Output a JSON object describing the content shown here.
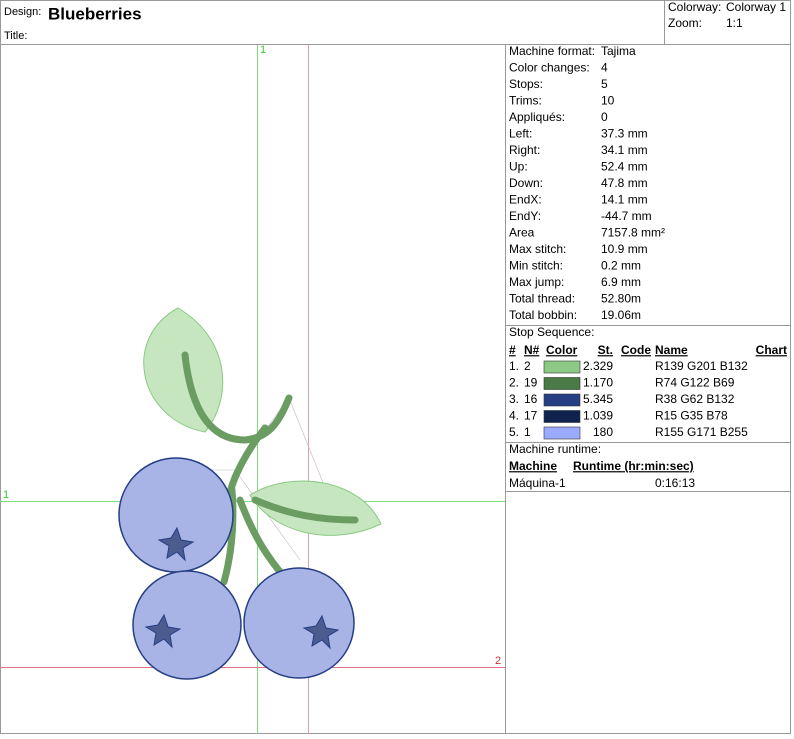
{
  "header": {
    "design_label": "Design:",
    "design": "Blueberries",
    "title_label": "Title:",
    "colorway_label": "Colorway:",
    "colorway": "Colorway 1",
    "zoom_label": "Zoom:",
    "zoom": "1:1"
  },
  "guide_labels": {
    "top": "1",
    "left": "1",
    "right": "2"
  },
  "properties": [
    [
      "Machine format:",
      "Tajima"
    ],
    [
      "Color changes:",
      "4"
    ],
    [
      "Stops:",
      "5"
    ],
    [
      "Trims:",
      "10"
    ],
    [
      "Appliqués:",
      "0"
    ],
    [
      "Left:",
      "37.3 mm"
    ],
    [
      "Right:",
      "34.1 mm"
    ],
    [
      "Up:",
      "52.4 mm"
    ],
    [
      "Down:",
      "47.8 mm"
    ],
    [
      "EndX:",
      "14.1 mm"
    ],
    [
      "EndY:",
      "-44.7 mm"
    ],
    [
      "Area",
      "7157.8 mm²"
    ],
    [
      "Max stitch:",
      "10.9 mm"
    ],
    [
      "Min stitch:",
      "0.2 mm"
    ],
    [
      "Max jump:",
      "6.9 mm"
    ],
    [
      "Total thread:",
      "52.80m"
    ],
    [
      "Total bobbin:",
      "19.06m"
    ]
  ],
  "stop_sequence": {
    "title": "Stop Sequence:",
    "columns": [
      "#",
      "N#",
      "Color",
      "St.",
      "Code",
      "Name",
      "Chart"
    ],
    "rows": [
      {
        "index": "1.",
        "needle": "2",
        "color": "#8bc984",
        "stitches": "2.329",
        "name": "R139 G201 B132"
      },
      {
        "index": "2.",
        "needle": "19",
        "color": "#4a7a45",
        "stitches": "1.170",
        "name": "R74 G122 B69"
      },
      {
        "index": "3.",
        "needle": "16",
        "color": "#263e84",
        "stitches": "5.345",
        "name": "R38 G62 B132"
      },
      {
        "index": "4.",
        "needle": "17",
        "color": "#0f234e",
        "stitches": "1.039",
        "name": "R15 G35 B78"
      },
      {
        "index": "5.",
        "needle": "1",
        "color": "#9babff",
        "stitches": "180",
        "name": "R155 G171 B255"
      }
    ]
  },
  "runtime": {
    "title": "Machine runtime:",
    "columns": [
      "Machine",
      "Runtime (hr:min:sec)"
    ],
    "rows": [
      [
        "Máquina-1",
        "0:16:13"
      ]
    ]
  }
}
